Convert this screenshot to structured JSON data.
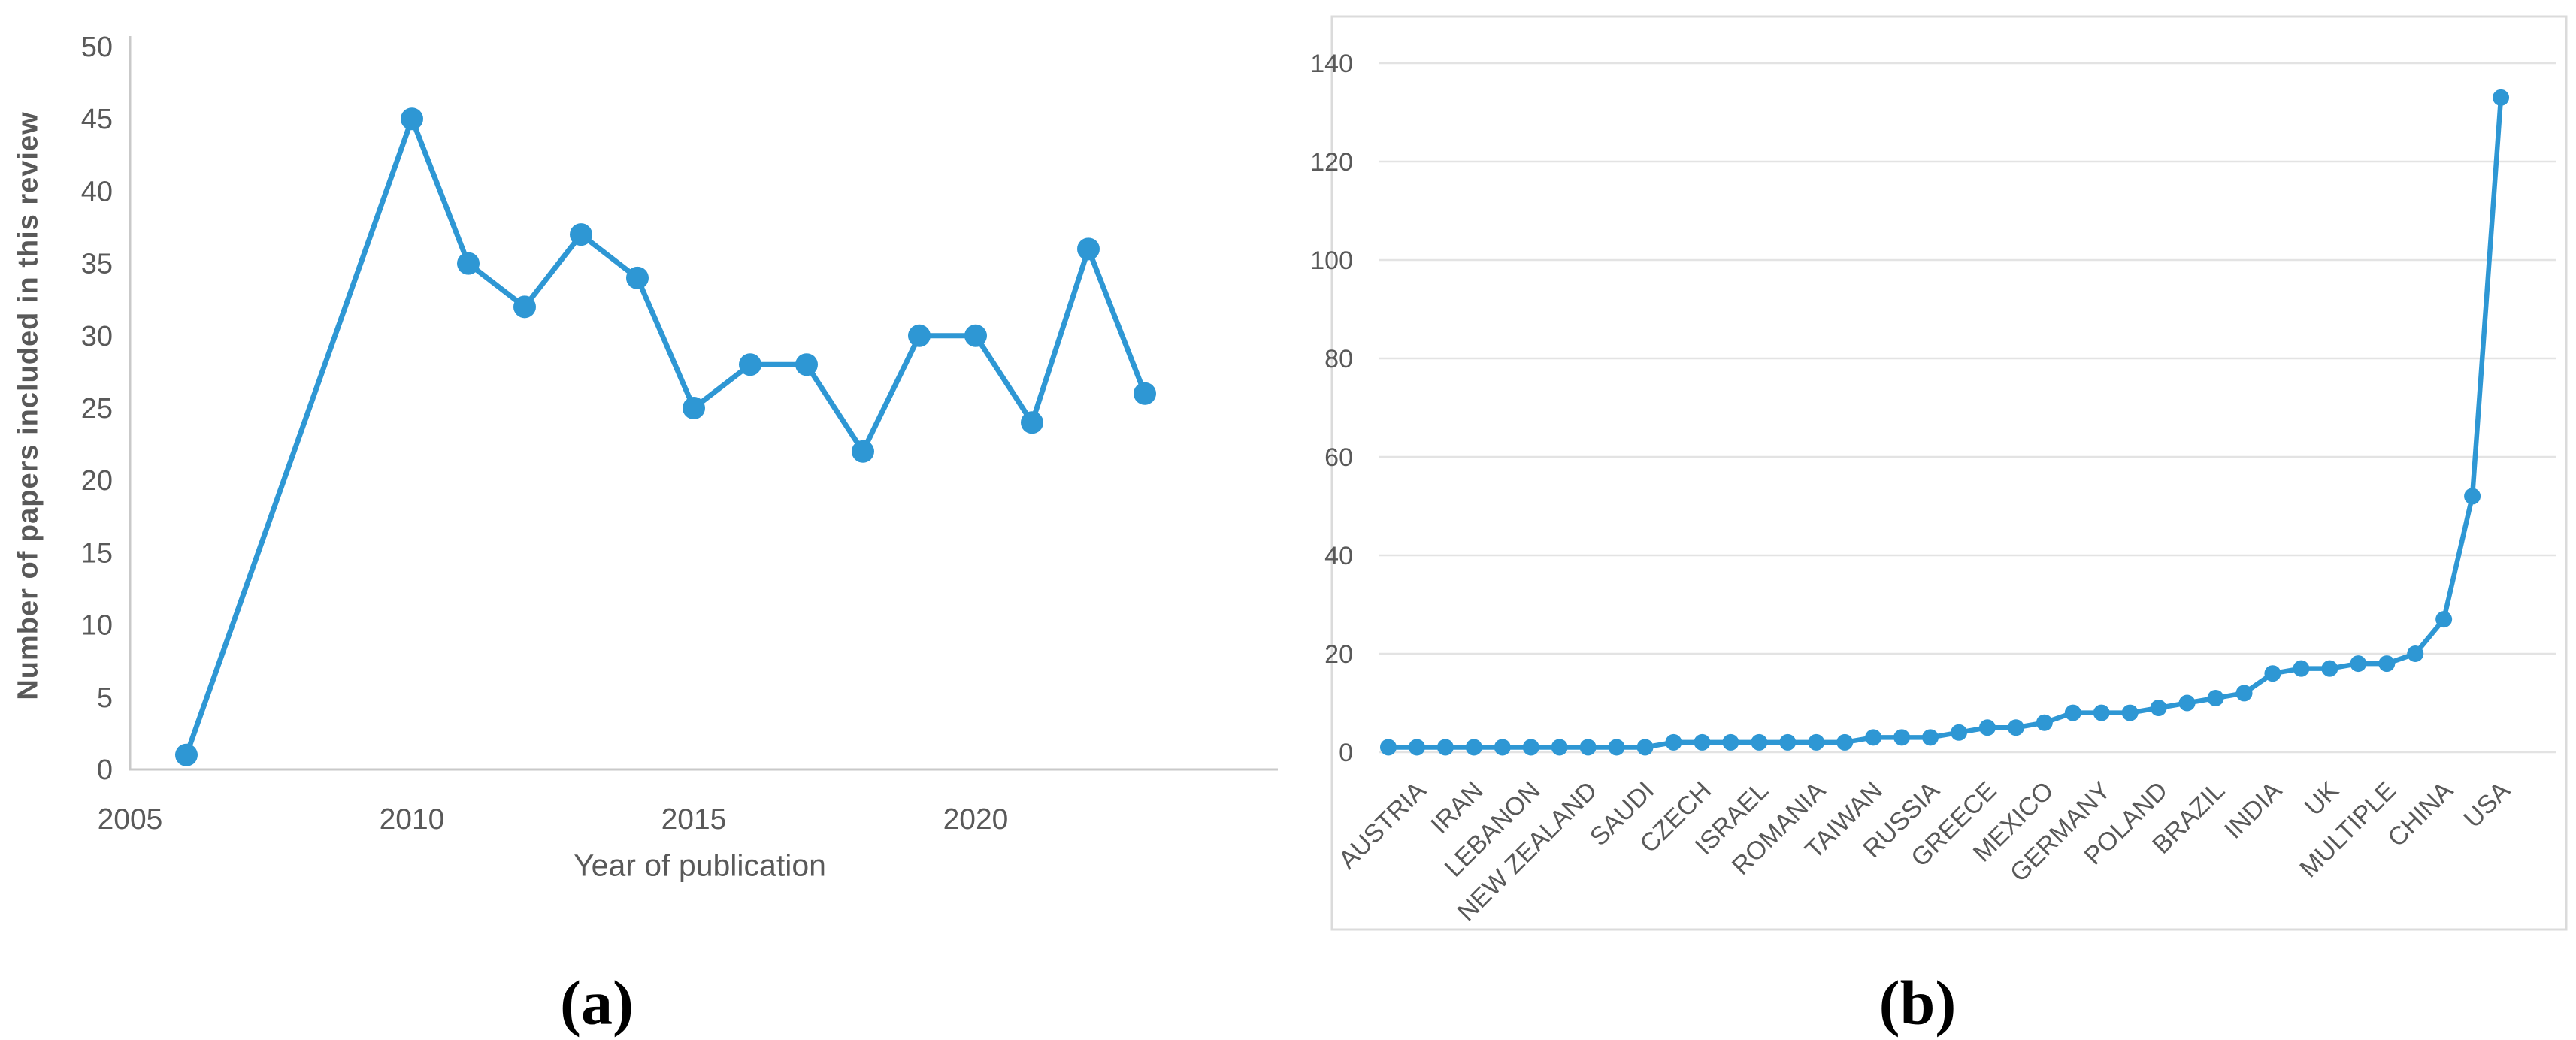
{
  "figure": {
    "caption_a": "(a)",
    "caption_b": "(b)"
  },
  "colors": {
    "series_line": "#2E97D4",
    "marker_fill": "#2E97D4",
    "axis_line": "#C9C9C9",
    "gridline": "#E3E3E3",
    "tick_text": "#595959",
    "plot_border": "#DBDBDB"
  },
  "chart_data": [
    {
      "id": "papers-by-year",
      "type": "line",
      "title": "",
      "xlabel": "Year of publication",
      "ylabel": "Number of papers included in this review",
      "x": [
        2006,
        2010,
        2011,
        2012,
        2013,
        2014,
        2015,
        2016,
        2017,
        2018,
        2019,
        2020,
        2021,
        2022,
        2023
      ],
      "y": [
        1,
        45,
        35,
        32,
        37,
        34,
        25,
        28,
        28,
        22,
        30,
        30,
        24,
        36,
        26
      ],
      "x_ticks": [
        2005,
        2010,
        2015,
        2020
      ],
      "y_ticks": [
        0,
        5,
        10,
        15,
        20,
        25,
        30,
        35,
        40,
        45,
        50
      ],
      "xlim": [
        2005,
        2023.8
      ],
      "ylim": [
        0,
        50
      ],
      "grid": false,
      "legend": "none"
    },
    {
      "id": "papers-by-country",
      "type": "line",
      "title": "",
      "xlabel": "",
      "ylabel": "",
      "categories": [
        "",
        "AUSTRIA",
        "",
        "IRAN",
        "",
        "LEBANON",
        "",
        "NEW ZEALAND",
        "",
        "SAUDI",
        "",
        "CZECH",
        "",
        "ISRAEL",
        "",
        "ROMANIA",
        "",
        "TAIWAN",
        "",
        "RUSSIA",
        "",
        "GREECE",
        "",
        "MEXICO",
        "",
        "GERMANY",
        "",
        "POLAND",
        "",
        "BRAZIL",
        "",
        "INDIA",
        "",
        "UK",
        "",
        "MULTIPLE",
        "",
        "CHINA",
        "",
        "USA"
      ],
      "values": [
        1,
        1,
        1,
        1,
        1,
        1,
        1,
        1,
        1,
        1,
        2,
        2,
        2,
        2,
        2,
        2,
        2,
        3,
        3,
        3,
        4,
        5,
        5,
        6,
        8,
        8,
        8,
        9,
        10,
        11,
        12,
        16,
        17,
        17,
        18,
        18,
        20,
        27,
        52,
        133
      ],
      "y_ticks": [
        0,
        20,
        40,
        60,
        80,
        100,
        120,
        140
      ],
      "ylim": [
        0,
        140
      ],
      "grid": true,
      "legend": "none"
    }
  ]
}
